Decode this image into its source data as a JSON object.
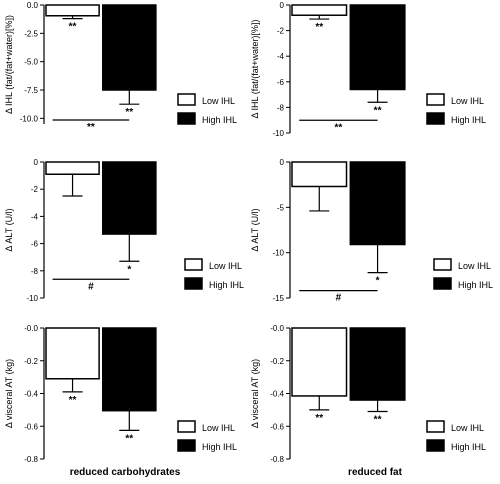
{
  "figure": {
    "group_labels": {
      "left": "reduced carbohydrates",
      "right": "reduced fat"
    }
  },
  "chart_data": [
    {
      "id": "ihl-carb",
      "type": "bar",
      "ylabel": "Δ IHL (fat/(fat+water)[%])",
      "ylim": [
        -10.5,
        0
      ],
      "yticks": [
        -10.0,
        -7.5,
        -5.0,
        -2.5,
        0.0
      ],
      "tick_format": "%.1f",
      "series": [
        {
          "name": "Low IHL",
          "value": -0.95,
          "error": 0.25,
          "color": "#ffffff",
          "sig": "**"
        },
        {
          "name": "High IHL",
          "value": -7.5,
          "error": 1.25,
          "color": "#000000",
          "sig": "**"
        }
      ],
      "comparison": "**"
    },
    {
      "id": "ihl-fat",
      "type": "bar",
      "ylabel": "Δ IHL (fat/(fat+water)[%])",
      "ylim": [
        -10,
        0
      ],
      "yticks": [
        -10,
        -8,
        -6,
        -4,
        -2,
        0
      ],
      "tick_format": "%d",
      "series": [
        {
          "name": "Low IHL",
          "value": -0.8,
          "error": 0.3,
          "color": "#ffffff",
          "sig": "**"
        },
        {
          "name": "High IHL",
          "value": -6.6,
          "error": 1.0,
          "color": "#000000",
          "sig": "**"
        }
      ],
      "comparison": "**"
    },
    {
      "id": "alt-carb",
      "type": "bar",
      "ylabel": "Δ ALT (U/l)",
      "ylim": [
        -10,
        0
      ],
      "yticks": [
        -10,
        -8,
        -6,
        -4,
        -2,
        0
      ],
      "tick_format": "%d",
      "series": [
        {
          "name": "Low IHL",
          "value": -0.9,
          "error": 1.6,
          "color": "#ffffff",
          "sig": ""
        },
        {
          "name": "High IHL",
          "value": -5.3,
          "error": 2.0,
          "color": "#000000",
          "sig": "*"
        }
      ],
      "comparison": "#"
    },
    {
      "id": "alt-fat",
      "type": "bar",
      "ylabel": "Δ ALT (U/l)",
      "ylim": [
        -15,
        0
      ],
      "yticks": [
        -15,
        -10,
        -5,
        0
      ],
      "tick_format": "%d",
      "series": [
        {
          "name": "Low IHL",
          "value": -2.7,
          "error": 2.7,
          "color": "#ffffff",
          "sig": ""
        },
        {
          "name": "High IHL",
          "value": -9.1,
          "error": 3.1,
          "color": "#000000",
          "sig": "*"
        }
      ],
      "comparison": "#"
    },
    {
      "id": "vat-carb",
      "type": "bar",
      "ylabel": "Δ visceral AT (kg)",
      "ylim": [
        -0.8,
        0
      ],
      "yticks": [
        -0.8,
        -0.6,
        -0.4,
        -0.2,
        -0.0
      ],
      "tick_format": "%.1f",
      "series": [
        {
          "name": "Low IHL",
          "value": -0.31,
          "error": 0.08,
          "color": "#ffffff",
          "sig": "**"
        },
        {
          "name": "High IHL",
          "value": -0.505,
          "error": 0.12,
          "color": "#000000",
          "sig": "**"
        }
      ],
      "comparison": ""
    },
    {
      "id": "vat-fat",
      "type": "bar",
      "ylabel": "Δ visceral AT (kg)",
      "ylim": [
        -0.8,
        0
      ],
      "yticks": [
        -0.8,
        -0.6,
        -0.4,
        -0.2,
        -0.0
      ],
      "tick_format": "%.1f",
      "series": [
        {
          "name": "Low IHL",
          "value": -0.415,
          "error": 0.085,
          "color": "#ffffff",
          "sig": "**"
        },
        {
          "name": "High IHL",
          "value": -0.44,
          "error": 0.07,
          "color": "#000000",
          "sig": "**"
        }
      ],
      "comparison": ""
    }
  ]
}
